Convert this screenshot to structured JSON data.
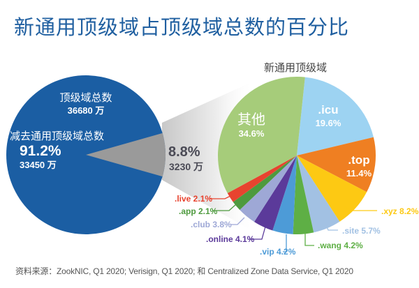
{
  "title": "新通用顶级域占顶级域总数的百分比",
  "source": "资料来源：ZookNIC, Q1 2020; Verisign, Q1 2020; 和 Centralized Zone Data Service, Q1 2020",
  "chart_data": [
    {
      "type": "pie",
      "title": "",
      "header_label": "顶级域总数",
      "header_value": "36680 万",
      "slices": [
        {
          "name": "减去通用顶级域总数",
          "percent": 91.2,
          "percent_label": "91.2%",
          "value_label": "33450 万",
          "color": "#1b5ea3"
        },
        {
          "name": "新通用顶级域",
          "percent": 8.8,
          "percent_label": "8.8%",
          "value_label": "3230 万",
          "color": "#9a9a9a"
        }
      ]
    },
    {
      "type": "pie",
      "title": "新通用顶级域",
      "start_angle_deg": 6,
      "slices": [
        {
          "name": ".icu",
          "percent": 19.6,
          "label": "19.6%",
          "color": "#9dd3f2",
          "label_inside": true
        },
        {
          "name": ".top",
          "percent": 11.4,
          "label": "11.4%",
          "color": "#ef7f22",
          "label_inside": true
        },
        {
          "name": ".xyz",
          "percent": 8.2,
          "label": ".xyz 8.2%",
          "color": "#fdc913",
          "label_inside": false
        },
        {
          "name": ".site",
          "percent": 5.7,
          "label": ".site 5.7%",
          "color": "#a2c1e3",
          "label_inside": false
        },
        {
          "name": ".wang",
          "percent": 4.2,
          "label": ".wang 4.2%",
          "color": "#5eaf45",
          "label_inside": false
        },
        {
          "name": ".vip",
          "percent": 4.2,
          "label": ".vip 4.2%",
          "color": "#4d9bd7",
          "label_inside": false
        },
        {
          "name": ".online",
          "percent": 4.1,
          "label": ".online 4.1%",
          "color": "#5b3a9a",
          "label_inside": false
        },
        {
          "name": ".club",
          "percent": 3.8,
          "label": ".club 3.8%",
          "color": "#9ea8d6",
          "label_inside": false
        },
        {
          "name": ".app",
          "percent": 2.1,
          "label": ".app 2.1%",
          "color": "#4e9a3e",
          "label_inside": false
        },
        {
          "name": ".live",
          "percent": 2.1,
          "label": ".live 2.1%",
          "color": "#e8432f",
          "label_inside": false
        },
        {
          "name": "其他",
          "percent": 34.6,
          "label": "34.6%",
          "color": "#a6cc7a",
          "label_inside": true
        }
      ]
    }
  ]
}
